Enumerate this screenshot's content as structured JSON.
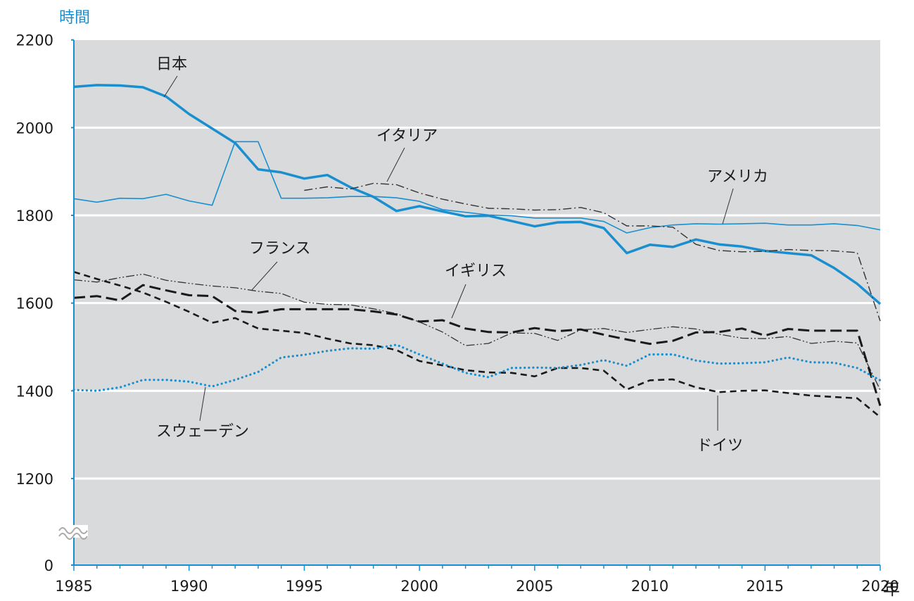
{
  "chart_data": {
    "type": "line",
    "ylabel": "時間",
    "xunit": "年",
    "y_ticks": [
      "0",
      "1200",
      "1400",
      "1600",
      "1800",
      "2000",
      "2200"
    ],
    "x_ticks": [
      "1985",
      "1990",
      "1995",
      "2000",
      "2005",
      "2010",
      "2015",
      "2020"
    ],
    "axis_break": true,
    "grid": true,
    "background": "#d9dadc",
    "series": [
      {
        "name": "日本",
        "color": "#1a8fd0",
        "style": "thick",
        "x": [
          1985,
          1986,
          1987,
          1988,
          1989,
          1990,
          1991,
          1992,
          1993,
          1994,
          1995,
          1996,
          1997,
          1998,
          1999,
          2000,
          2001,
          2002,
          2003,
          2004,
          2005,
          2006,
          2007,
          2008,
          2009,
          2010,
          2011,
          2012,
          2013,
          2014,
          2015,
          2016,
          2017,
          2018,
          2019,
          2020
        ],
        "values": [
          2093,
          2097,
          2096,
          2092,
          2071,
          2031,
          1998,
          1965,
          1905,
          1898,
          1884,
          1892,
          1864,
          1842,
          1810,
          1821,
          1809,
          1798,
          1799,
          1787,
          1775,
          1784,
          1785,
          1771,
          1714,
          1733,
          1728,
          1745,
          1734,
          1729,
          1719,
          1714,
          1709,
          1680,
          1644,
          1598
        ]
      },
      {
        "name": "アメリカ",
        "color": "#1a8fd0",
        "style": "thin",
        "x": [
          1985,
          1986,
          1987,
          1988,
          1989,
          1990,
          1991,
          1992,
          1993,
          1994,
          1995,
          1996,
          1997,
          1998,
          1999,
          2000,
          2001,
          2002,
          2003,
          2004,
          2005,
          2006,
          2007,
          2008,
          2009,
          2010,
          2011,
          2012,
          2013,
          2014,
          2015,
          2016,
          2017,
          2018,
          2019,
          2020
        ],
        "values": [
          1838,
          1830,
          1839,
          1838,
          1848,
          1833,
          1823,
          1968,
          1968,
          1839,
          1839,
          1840,
          1843,
          1843,
          1840,
          1832,
          1813,
          1807,
          1801,
          1799,
          1794,
          1794,
          1794,
          1786,
          1760,
          1772,
          1778,
          1781,
          1780,
          1781,
          1782,
          1778,
          1778,
          1781,
          1777,
          1767
        ]
      },
      {
        "name": "イタリア",
        "color": "#333333",
        "style": "dashdot",
        "x": [
          1995,
          1996,
          1997,
          1998,
          1999,
          2000,
          2001,
          2002,
          2003,
          2004,
          2005,
          2006,
          2007,
          2008,
          2009,
          2010,
          2011,
          2012,
          2013,
          2014,
          2015,
          2016,
          2017,
          2018,
          2019,
          2020
        ],
        "values": [
          1857,
          1865,
          1860,
          1873,
          1870,
          1851,
          1837,
          1826,
          1816,
          1815,
          1812,
          1813,
          1818,
          1806,
          1776,
          1776,
          1773,
          1734,
          1720,
          1717,
          1718,
          1722,
          1720,
          1719,
          1715,
          1559
        ]
      },
      {
        "name": "フランス",
        "color": "#333333",
        "style": "dashdotdot",
        "x": [
          1985,
          1986,
          1987,
          1988,
          1989,
          1990,
          1991,
          1992,
          1993,
          1994,
          1995,
          1996,
          1997,
          1998,
          1999,
          2000,
          2001,
          2002,
          2003,
          2004,
          2005,
          2006,
          2007,
          2008,
          2009,
          2010,
          2011,
          2012,
          2013,
          2014,
          2015,
          2016,
          2017,
          2018,
          2019,
          2020
        ],
        "values": [
          1653,
          1648,
          1658,
          1666,
          1652,
          1645,
          1639,
          1635,
          1627,
          1622,
          1602,
          1597,
          1596,
          1587,
          1576,
          1557,
          1534,
          1503,
          1508,
          1532,
          1531,
          1515,
          1539,
          1542,
          1533,
          1540,
          1546,
          1541,
          1529,
          1520,
          1519,
          1524,
          1508,
          1513,
          1509,
          1402
        ]
      },
      {
        "name": "イギリス",
        "color": "#1a1a1a",
        "style": "longdash",
        "x": [
          1985,
          1986,
          1987,
          1988,
          1989,
          1990,
          1991,
          1992,
          1993,
          1994,
          1995,
          1996,
          1997,
          1998,
          1999,
          2000,
          2001,
          2002,
          2003,
          2004,
          2005,
          2006,
          2007,
          2008,
          2009,
          2010,
          2011,
          2012,
          2013,
          2014,
          2015,
          2016,
          2017,
          2018,
          2019,
          2020
        ],
        "values": [
          1612,
          1616,
          1606,
          1641,
          1629,
          1618,
          1616,
          1582,
          1578,
          1586,
          1586,
          1586,
          1586,
          1581,
          1574,
          1558,
          1561,
          1542,
          1534,
          1533,
          1543,
          1536,
          1540,
          1528,
          1517,
          1507,
          1514,
          1533,
          1534,
          1542,
          1526,
          1541,
          1537,
          1537,
          1537,
          1366
        ]
      },
      {
        "name": "ドイツ",
        "color": "#1a1a1a",
        "style": "shortdash",
        "x": [
          1985,
          1986,
          1987,
          1988,
          1989,
          1990,
          1991,
          1992,
          1993,
          1994,
          1995,
          1996,
          1997,
          1998,
          1999,
          2000,
          2001,
          2002,
          2003,
          2004,
          2005,
          2006,
          2007,
          2008,
          2009,
          2010,
          2011,
          2012,
          2013,
          2014,
          2015,
          2016,
          2017,
          2018,
          2019,
          2020
        ],
        "values": [
          1671,
          1655,
          1640,
          1624,
          1603,
          1580,
          1555,
          1566,
          1542,
          1537,
          1532,
          1519,
          1508,
          1504,
          1493,
          1468,
          1458,
          1447,
          1442,
          1441,
          1433,
          1452,
          1452,
          1446,
          1403,
          1424,
          1426,
          1408,
          1397,
          1400,
          1401,
          1395,
          1389,
          1386,
          1383,
          1340
        ]
      },
      {
        "name": "スウェーデン",
        "color": "#1a8fd0",
        "style": "dotted",
        "x": [
          1985,
          1986,
          1987,
          1988,
          1989,
          1990,
          1991,
          1992,
          1993,
          1994,
          1995,
          1996,
          1997,
          1998,
          1999,
          2000,
          2001,
          2002,
          2003,
          2004,
          2005,
          2006,
          2007,
          2008,
          2009,
          2010,
          2011,
          2012,
          2013,
          2014,
          2015,
          2016,
          2017,
          2018,
          2019,
          2020
        ],
        "values": [
          1402,
          1400,
          1408,
          1425,
          1425,
          1421,
          1410,
          1425,
          1443,
          1476,
          1482,
          1491,
          1497,
          1496,
          1505,
          1483,
          1462,
          1441,
          1431,
          1452,
          1453,
          1452,
          1459,
          1470,
          1457,
          1483,
          1483,
          1469,
          1462,
          1463,
          1465,
          1476,
          1465,
          1464,
          1452,
          1424
        ]
      }
    ]
  }
}
